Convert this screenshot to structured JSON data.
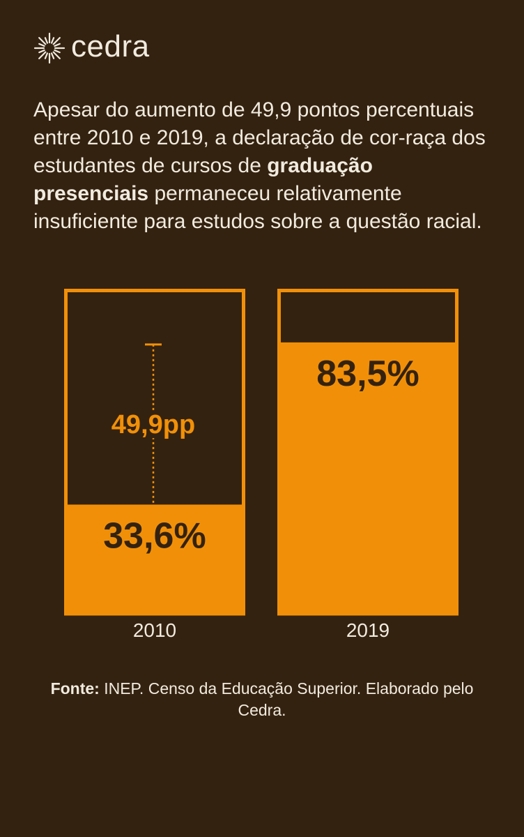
{
  "brand": {
    "name": "cedra",
    "icon": "sunburst-logo-icon"
  },
  "intro": {
    "before": "Apesar do aumento de 49,9 pontos percentuais entre 2010 e 2019, a declaração de cor-raça dos estudantes de cursos de ",
    "bold": "graduação presenciais",
    "after": " permaneceu relativamente insuficiente para estudos sobre a questão racial."
  },
  "colors": {
    "background": "#342210",
    "accent": "#f19008",
    "text": "#f1ebdf"
  },
  "chart_data": {
    "type": "bar",
    "title": "",
    "xlabel": "",
    "ylabel": "",
    "ylim": [
      0,
      100
    ],
    "categories": [
      "2010",
      "2019"
    ],
    "values": [
      33.6,
      83.5
    ],
    "value_labels": [
      "33,6%",
      "83,5%"
    ],
    "difference": {
      "value": 49.9,
      "label": "49,9pp",
      "between": [
        "2010",
        "2019"
      ]
    }
  },
  "source": {
    "label": "Fonte:",
    "text": " INEP. Censo da Educação Superior. Elaborado pelo Cedra."
  }
}
